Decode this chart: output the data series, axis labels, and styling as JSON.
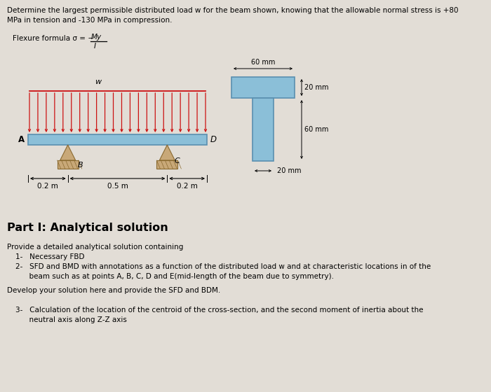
{
  "bg_color": "#e2ddd6",
  "title_line1": "Determine the largest permissible distributed load w for the beam shown, knowing that the allowable normal stress is +80",
  "title_line2": "MPa in tension and -130 MPa in compression.",
  "flexure_text": "Flexure formula σ = −",
  "frac_num": "My",
  "frac_den": "I",
  "beam_label_A": "A",
  "beam_label_D": "D",
  "beam_label_B": "B",
  "beam_label_C": "C",
  "load_label": "w",
  "dim_02_left": "0.2 m",
  "dim_05": "0.5 m",
  "dim_02_right": "0.2 m",
  "flange_width_label": "60 mm",
  "flange_thick_label": "20 mm",
  "web_height_label": "60 mm",
  "web_width_label": "20 mm",
  "part_heading": "Part I: Analytical solution",
  "text1": "Provide a detailed analytical solution containing",
  "text2": "1-   Necessary FBD",
  "text3": "2-   SFD and BMD with annotations as a function of the distributed load w and at characteristic locations in of the",
  "text4": "      beam such as at points A, B, C, D and E(mid-length of the beam due to symmetry).",
  "text5": "Develop your solution here and provide the SFD and BDM.",
  "text6": "3-   Calculation of the location of the centroid of the cross-section, and the second moment of inertia about the",
  "text7": "      neutral axis along Z-Z axis",
  "beam_color": "#8bbfd8",
  "beam_edge": "#5a90b0",
  "arrow_color": "#cc1111",
  "support_color": "#c8a878",
  "support_edge": "#8a6a30",
  "cs_color": "#8bbfd8",
  "cs_edge": "#5a90b0"
}
